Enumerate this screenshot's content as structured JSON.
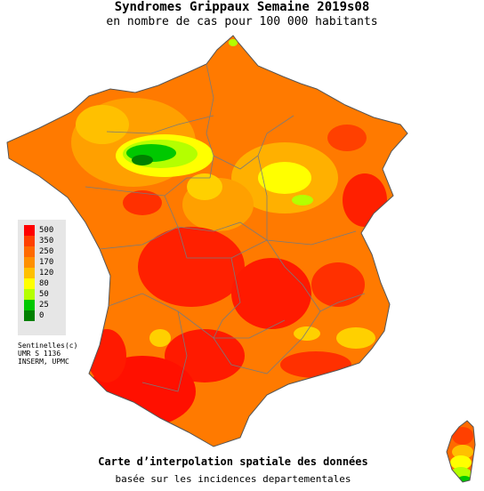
{
  "header": {
    "title": "Syndromes Grippaux Semaine 2019s08",
    "subtitle": "en nombre de cas pour 100 000 habitants"
  },
  "legend": {
    "items": [
      {
        "label": "500",
        "color": "#ff0000"
      },
      {
        "label": "350",
        "color": "#ff4000"
      },
      {
        "label": "250",
        "color": "#ff6a00"
      },
      {
        "label": "170",
        "color": "#ff9000"
      },
      {
        "label": "120",
        "color": "#ffc000"
      },
      {
        "label": "80",
        "color": "#ffff00"
      },
      {
        "label": "50",
        "color": "#b4ff00"
      },
      {
        "label": "25",
        "color": "#00c800"
      },
      {
        "label": "0",
        "color": "#008000"
      }
    ]
  },
  "credits": {
    "line1": "Sentinelles(c)",
    "line2": "UMR S 1136",
    "line3": "INSERM, UPMC"
  },
  "footer": {
    "title": "Carte d’interpolation spatiale des données",
    "subtitle": "basée sur les incidences departementales"
  }
}
